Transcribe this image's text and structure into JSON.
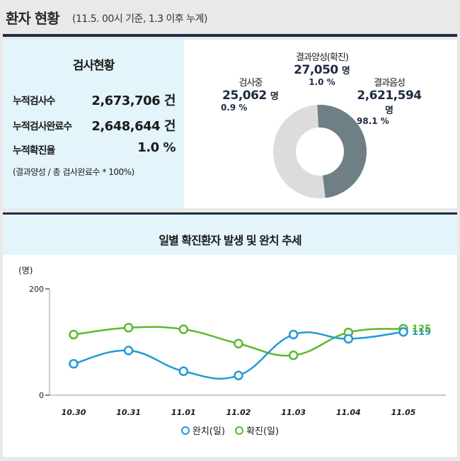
{
  "header": {
    "title": "환자 현황",
    "subtitle": "(11.5. 00시 기준, 1.3 이후 누계)"
  },
  "stats": {
    "title": "검사현황",
    "rows": [
      {
        "label": "누적검사수",
        "value": "2,673,706 건"
      },
      {
        "label": "누적검사완료수",
        "value": "2,648,644 건"
      },
      {
        "label": "누적확진율",
        "value": "1.0 %"
      }
    ],
    "note": "(결과양성 / 총 검사완료수 * 100%)"
  },
  "donut": {
    "positive": {
      "name": "결과양성(확진)",
      "count": "27,050",
      "unit": "명",
      "pct": "1.0 %"
    },
    "testing": {
      "name": "검사중",
      "count": "25,062",
      "unit": "명",
      "pct": "0.9 %"
    },
    "negative": {
      "name": "결과음성",
      "count": "2,621,594",
      "unit": "명",
      "pct": "98.1 %"
    }
  },
  "colors": {
    "navy": "#1f2a44",
    "positive": "#1f9ad6",
    "testing": "#6e7f86",
    "negative": "#dcdcdc",
    "released_series": "#1f9ad6",
    "confirmed_series": "#5cb82e"
  },
  "chart_data": {
    "type": "line",
    "title": "일별 확진환자 발생 및 완치 추세",
    "ylabel": "(명)",
    "ylim": [
      0,
      200
    ],
    "yticks": [
      0,
      200
    ],
    "categories": [
      "10.30",
      "10.31",
      "11.01",
      "11.02",
      "11.03",
      "11.04",
      "11.05"
    ],
    "series": [
      {
        "name": "완치(일)",
        "values": [
          59,
          84,
          45,
          37,
          114,
          106,
          119
        ],
        "color": "#1f9ad6"
      },
      {
        "name": "확진(일)",
        "values": [
          114,
          127,
          124,
          97,
          75,
          118,
          125
        ],
        "color": "#5cb82e"
      }
    ],
    "end_labels": [
      "119",
      "125"
    ],
    "legend_position": "bottom",
    "grid": false
  }
}
